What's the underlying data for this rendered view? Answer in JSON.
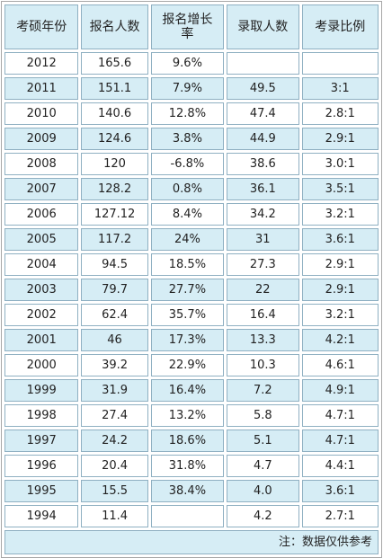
{
  "headers": [
    "考硕年份",
    "报名人数",
    "报名增长\n率",
    "录取人数",
    "考录比例"
  ],
  "rows": [
    [
      "2012",
      "165.6",
      "9.6%",
      "",
      ""
    ],
    [
      "2011",
      "151.1",
      "7.9%",
      "49.5",
      "3:1"
    ],
    [
      "2010",
      "140.6",
      "12.8%",
      "47.4",
      "2.8:1"
    ],
    [
      "2009",
      "124.6",
      "3.8%",
      "44.9",
      "2.9:1"
    ],
    [
      "2008",
      "120",
      "-6.8%",
      "38.6",
      "3.0:1"
    ],
    [
      "2007",
      "128.2",
      "0.8%",
      "36.1",
      "3.5:1"
    ],
    [
      "2006",
      "127.12",
      "8.4%",
      "34.2",
      "3.2:1"
    ],
    [
      "2005",
      "117.2",
      "24%",
      "31",
      "3.6:1"
    ],
    [
      "2004",
      "94.5",
      "18.5%",
      "27.3",
      "2.9:1"
    ],
    [
      "2003",
      "79.7",
      "27.7%",
      "22",
      "2.9:1"
    ],
    [
      "2002",
      "62.4",
      "35.7%",
      "16.4",
      "3.2:1"
    ],
    [
      "2001",
      "46",
      "17.3%",
      "13.3",
      "4.2:1"
    ],
    [
      "2000",
      "39.2",
      "22.9%",
      "10.3",
      "4.6:1"
    ],
    [
      "1999",
      "31.9",
      "16.4%",
      "7.2",
      "4.9:1"
    ],
    [
      "1998",
      "27.4",
      "13.2%",
      "5.8",
      "4.7:1"
    ],
    [
      "1997",
      "24.2",
      "18.6%",
      "5.1",
      "4.7:1"
    ],
    [
      "1996",
      "20.4",
      "31.8%",
      "4.7",
      "4.4:1"
    ],
    [
      "1995",
      "15.5",
      "38.4%",
      "4.0",
      "3.6:1"
    ],
    [
      "1994",
      "11.4",
      "",
      "4.2",
      "2.7:1"
    ]
  ],
  "footnote": "注：数据仅供参考",
  "colors": {
    "header_bg": "#d6edf5",
    "row_alt_bg": "#d6edf5",
    "row_bg": "#ffffff",
    "cell_border": "#8fb0c2",
    "outer_border": "#a7a7a7",
    "text": "#222222"
  }
}
